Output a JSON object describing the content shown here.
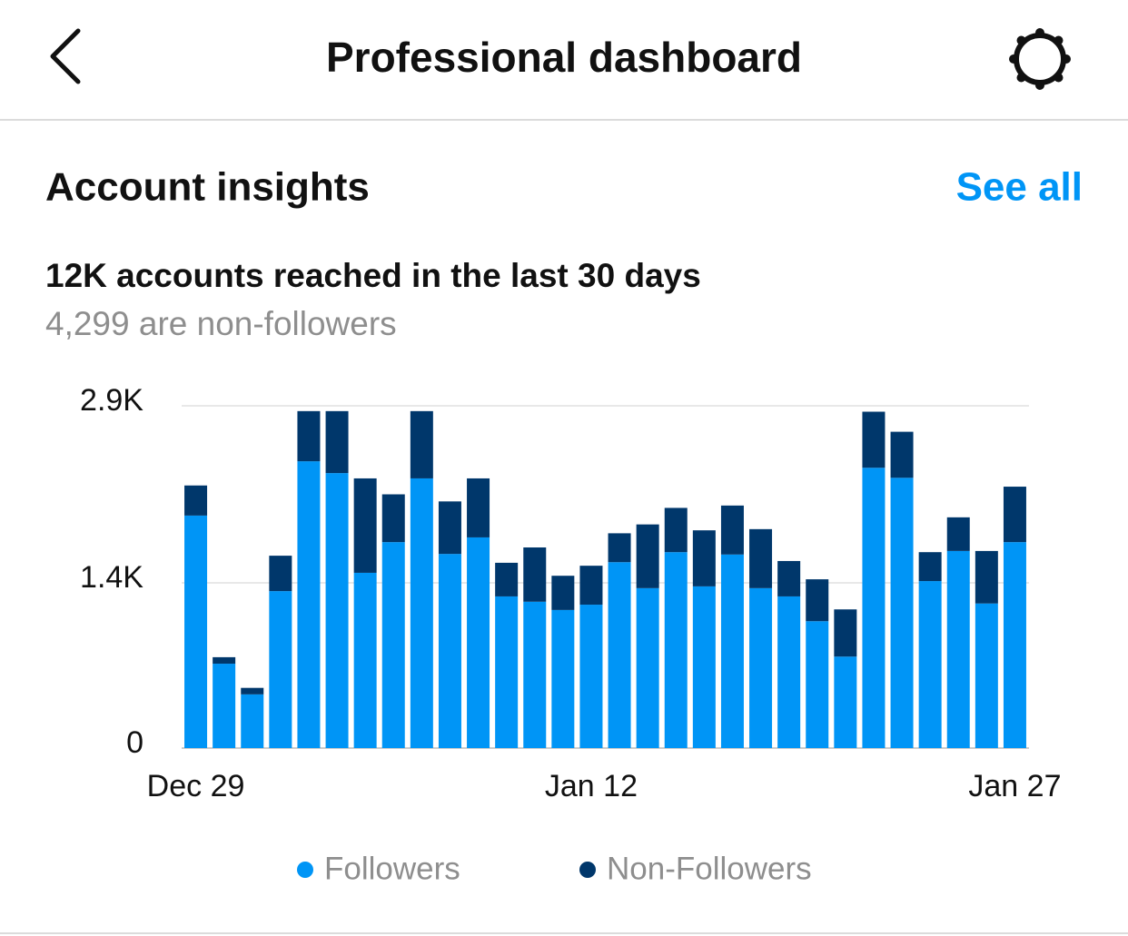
{
  "header": {
    "title": "Professional dashboard"
  },
  "section": {
    "title": "Account insights",
    "link": "See all"
  },
  "summary": {
    "headline": "12K accounts reached in the last 30 days",
    "subtext": "4,299 are non-followers"
  },
  "chart_data": {
    "type": "bar",
    "stacked": true,
    "grid": true,
    "categories": [
      "Dec 29",
      null,
      null,
      null,
      null,
      null,
      null,
      null,
      null,
      null,
      null,
      null,
      null,
      null,
      "Jan 12",
      null,
      null,
      null,
      null,
      null,
      null,
      null,
      null,
      null,
      null,
      null,
      null,
      null,
      null,
      "Jan 27"
    ],
    "series": [
      {
        "name": "Followers",
        "color": "#0095f6",
        "values": [
          1970,
          715,
          455,
          1330,
          2430,
          2330,
          1485,
          1745,
          2285,
          1645,
          1785,
          1285,
          1240,
          1170,
          1215,
          1575,
          1355,
          1660,
          1370,
          1640,
          1355,
          1285,
          1075,
          775,
          2375,
          2290,
          1415,
          1670,
          1225,
          1745
        ]
      },
      {
        "name": "Non-Followers",
        "color": "#00376b",
        "values": [
          255,
          55,
          55,
          300,
          425,
          525,
          800,
          405,
          570,
          445,
          500,
          285,
          460,
          290,
          330,
          245,
          540,
          375,
          475,
          415,
          500,
          300,
          355,
          400,
          475,
          390,
          245,
          285,
          445,
          470
        ]
      }
    ],
    "ylim": [
      0,
      2900
    ],
    "yticks": [
      0,
      {
        "value": 1400,
        "label": "1.4K"
      },
      {
        "value": 2900,
        "label": "2.9K"
      }
    ]
  }
}
